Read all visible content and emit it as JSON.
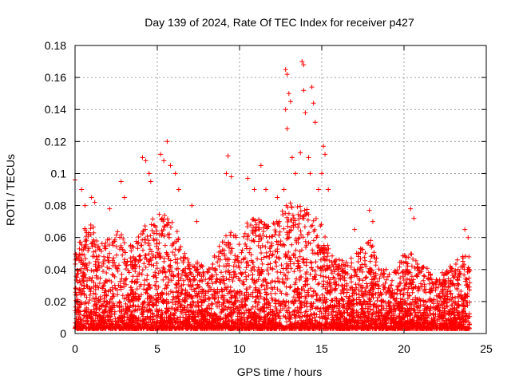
{
  "chart_data": {
    "type": "scatter",
    "title": "Day 139 of 2024, Rate Of TEC Index for receiver p427",
    "xlabel": "GPS time / hours",
    "ylabel": "ROTI / TECUs",
    "xlim": [
      0,
      25
    ],
    "ylim": [
      0,
      0.18
    ],
    "xticks": [
      "0",
      "5",
      "10",
      "15",
      "20",
      "25"
    ],
    "xtick_values": [
      0,
      5,
      10,
      15,
      20,
      25
    ],
    "yticks": [
      "0",
      "0.02",
      "0.04",
      "0.06",
      "0.08",
      "0.1",
      "0.12",
      "0.14",
      "0.16",
      "0.18"
    ],
    "ytick_values": [
      0,
      0.02,
      0.04,
      0.06,
      0.08,
      0.1,
      0.12,
      0.14,
      0.16,
      0.18
    ],
    "grid": true,
    "marker": "+",
    "color": "#ff0000",
    "data_span_hours": [
      0,
      24
    ],
    "envelope": {
      "x": [
        0,
        0.5,
        1,
        1.5,
        2,
        2.5,
        3,
        3.5,
        4,
        4.5,
        5,
        5.5,
        6,
        6.5,
        7,
        7.5,
        8,
        8.5,
        9,
        9.5,
        10,
        10.5,
        11,
        11.5,
        12,
        12.5,
        13,
        13.5,
        14,
        14.5,
        15,
        15.5,
        16,
        16.5,
        17,
        17.5,
        18,
        18.5,
        19,
        19.5,
        20,
        20.5,
        21,
        21.5,
        22,
        22.5,
        23,
        23.5,
        24
      ],
      "typical_max": [
        0.05,
        0.065,
        0.07,
        0.055,
        0.06,
        0.065,
        0.06,
        0.055,
        0.065,
        0.07,
        0.075,
        0.08,
        0.07,
        0.055,
        0.045,
        0.045,
        0.04,
        0.05,
        0.06,
        0.065,
        0.06,
        0.07,
        0.075,
        0.07,
        0.07,
        0.075,
        0.085,
        0.08,
        0.08,
        0.075,
        0.07,
        0.05,
        0.05,
        0.045,
        0.05,
        0.055,
        0.06,
        0.045,
        0.04,
        0.04,
        0.05,
        0.05,
        0.045,
        0.04,
        0.035,
        0.04,
        0.045,
        0.05,
        0.05
      ]
    },
    "outliers": [
      {
        "x": 0.0,
        "y": 0.096
      },
      {
        "x": 0.4,
        "y": 0.09
      },
      {
        "x": 0.6,
        "y": 0.08
      },
      {
        "x": 1.0,
        "y": 0.085
      },
      {
        "x": 1.2,
        "y": 0.082
      },
      {
        "x": 2.1,
        "y": 0.078
      },
      {
        "x": 2.8,
        "y": 0.095
      },
      {
        "x": 3.0,
        "y": 0.085
      },
      {
        "x": 4.1,
        "y": 0.11
      },
      {
        "x": 4.3,
        "y": 0.108
      },
      {
        "x": 4.5,
        "y": 0.1
      },
      {
        "x": 4.6,
        "y": 0.095
      },
      {
        "x": 5.2,
        "y": 0.112
      },
      {
        "x": 5.4,
        "y": 0.108
      },
      {
        "x": 5.6,
        "y": 0.12
      },
      {
        "x": 5.8,
        "y": 0.105
      },
      {
        "x": 6.1,
        "y": 0.1
      },
      {
        "x": 6.3,
        "y": 0.09
      },
      {
        "x": 7.1,
        "y": 0.08
      },
      {
        "x": 7.4,
        "y": 0.07
      },
      {
        "x": 9.3,
        "y": 0.111
      },
      {
        "x": 9.2,
        "y": 0.1
      },
      {
        "x": 9.5,
        "y": 0.098
      },
      {
        "x": 10.5,
        "y": 0.097
      },
      {
        "x": 10.9,
        "y": 0.09
      },
      {
        "x": 11.3,
        "y": 0.105
      },
      {
        "x": 11.6,
        "y": 0.09
      },
      {
        "x": 12.3,
        "y": 0.085
      },
      {
        "x": 12.7,
        "y": 0.09
      },
      {
        "x": 12.8,
        "y": 0.165
      },
      {
        "x": 12.9,
        "y": 0.162
      },
      {
        "x": 13.0,
        "y": 0.15
      },
      {
        "x": 13.1,
        "y": 0.145
      },
      {
        "x": 12.9,
        "y": 0.128
      },
      {
        "x": 12.8,
        "y": 0.14
      },
      {
        "x": 13.2,
        "y": 0.11
      },
      {
        "x": 13.4,
        "y": 0.1
      },
      {
        "x": 13.7,
        "y": 0.113
      },
      {
        "x": 13.8,
        "y": 0.17
      },
      {
        "x": 13.9,
        "y": 0.168
      },
      {
        "x": 13.9,
        "y": 0.152
      },
      {
        "x": 14.0,
        "y": 0.138
      },
      {
        "x": 14.2,
        "y": 0.11
      },
      {
        "x": 14.4,
        "y": 0.154
      },
      {
        "x": 14.5,
        "y": 0.144
      },
      {
        "x": 14.6,
        "y": 0.132
      },
      {
        "x": 14.3,
        "y": 0.1
      },
      {
        "x": 14.8,
        "y": 0.09
      },
      {
        "x": 15.1,
        "y": 0.117
      },
      {
        "x": 15.2,
        "y": 0.112
      },
      {
        "x": 15.0,
        "y": 0.1
      },
      {
        "x": 15.4,
        "y": 0.09
      },
      {
        "x": 17.0,
        "y": 0.065
      },
      {
        "x": 17.9,
        "y": 0.077
      },
      {
        "x": 18.1,
        "y": 0.07
      },
      {
        "x": 20.4,
        "y": 0.078
      },
      {
        "x": 20.6,
        "y": 0.072
      },
      {
        "x": 23.7,
        "y": 0.065
      },
      {
        "x": 23.9,
        "y": 0.06
      }
    ]
  }
}
